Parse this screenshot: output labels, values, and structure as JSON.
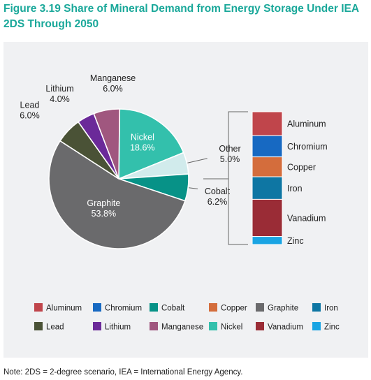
{
  "title": "Figure 3.19 Share of Mineral Demand from Energy Storage Under IEA 2DS Through 2050",
  "note": "Note: 2DS = 2-degree scenario, IEA = International Energy Agency.",
  "colors": {
    "Aluminum": "#c0454b",
    "Chromium": "#1769c2",
    "Cobalt": "#079287",
    "Copper": "#d46d3c",
    "Graphite": "#6a6a6c",
    "Iron": "#0e76a3",
    "Lead": "#4a5236",
    "Lithium": "#6b2a99",
    "Manganese": "#a0577f",
    "Nickel": "#33c0ac",
    "Vanadium": "#9a2c36",
    "Zinc": "#19a4e3",
    "Other": "#d1ebec"
  },
  "chart_data": {
    "type": "pie",
    "slices": [
      {
        "name": "Nickel",
        "value": 18.6,
        "label": "Nickel",
        "pct": "18.6%"
      },
      {
        "name": "Other",
        "value": 5.0,
        "label": "Other",
        "pct": "5.0%"
      },
      {
        "name": "Cobalt",
        "value": 6.2,
        "label": "Cobalt",
        "pct": "6.2%"
      },
      {
        "name": "Graphite",
        "value": 53.8,
        "label": "Graphite",
        "pct": "53.8%"
      },
      {
        "name": "Lead",
        "value": 6.0,
        "label": "Lead",
        "pct": "6.0%"
      },
      {
        "name": "Lithium",
        "value": 4.0,
        "label": "Lithium",
        "pct": "4.0%"
      },
      {
        "name": "Manganese",
        "value": 6.0,
        "label": "Manganese",
        "pct": "6.0%"
      }
    ],
    "other_breakdown": [
      {
        "name": "Aluminum",
        "share": 0.18
      },
      {
        "name": "Chromium",
        "share": 0.16
      },
      {
        "name": "Copper",
        "share": 0.15
      },
      {
        "name": "Iron",
        "share": 0.17
      },
      {
        "name": "Vanadium",
        "share": 0.28
      },
      {
        "name": "Zinc",
        "share": 0.06
      }
    ],
    "legend": {
      "placement": "bottom",
      "rows": [
        [
          "Aluminum",
          "Chromium",
          "Cobalt",
          "Copper",
          "Graphite",
          "Iron"
        ],
        [
          "Lead",
          "Lithium",
          "Manganese",
          "Nickel",
          "Vanadium",
          "Zinc"
        ]
      ]
    }
  }
}
